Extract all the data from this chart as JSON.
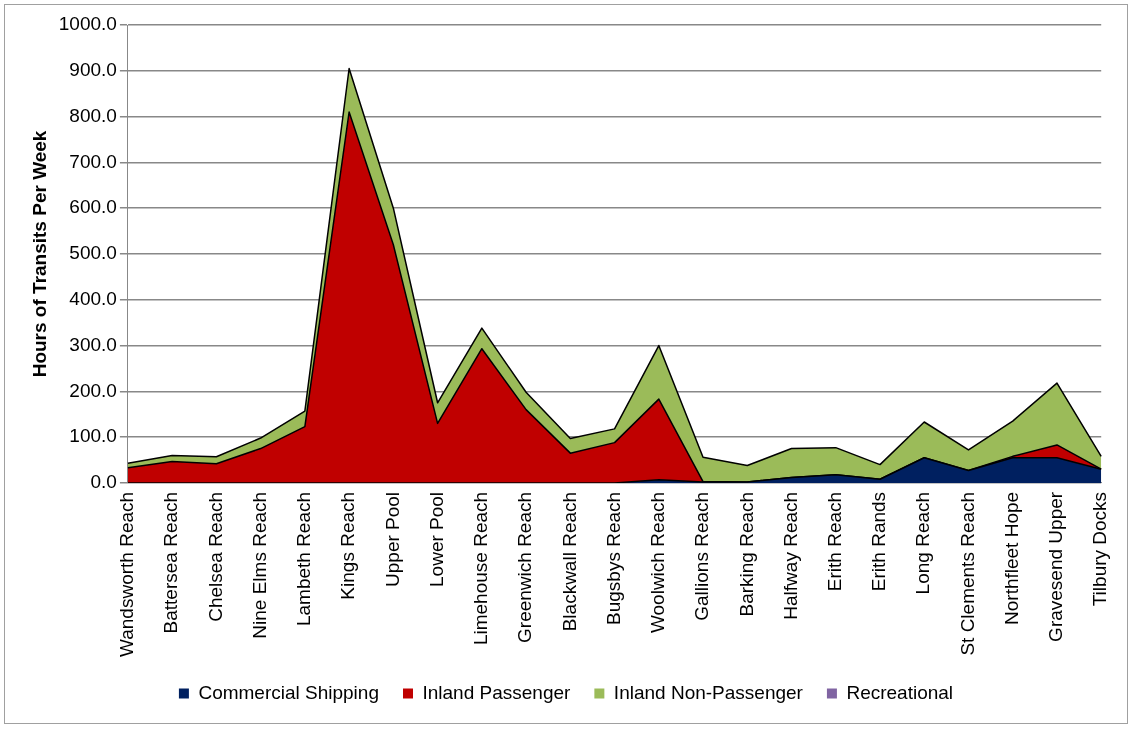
{
  "chart_data": {
    "type": "area",
    "stacked": true,
    "ylabel": "Hours of Transits Per Week",
    "categories": [
      "Wandsworth Reach",
      "Battersea Reach",
      "Chelsea Reach",
      "Nine Elms Reach",
      "Lambeth Reach",
      "Kings Reach",
      "Upper Pool",
      "Lower Pool",
      "Limehouse Reach",
      "Greenwich Reach",
      "Blackwall Reach",
      "Bugsbys Reach",
      "Woolwich Reach",
      "Gallions Reach",
      "Barking Reach",
      "Halfway Reach",
      "Erith Reach",
      "Erith Rands",
      "Long Reach",
      "St Clements Reach",
      "Northfleet Hope",
      "Gravesend Upper",
      "Tilbury Docks"
    ],
    "series": [
      {
        "name": "Commercial Shipping",
        "color": "#002060",
        "values": [
          0,
          0,
          0,
          0,
          0,
          0,
          0,
          0,
          0,
          0,
          0,
          0,
          7,
          2,
          2,
          12,
          18,
          8,
          55,
          27,
          55,
          55,
          30
        ]
      },
      {
        "name": "Inland Passenger",
        "color": "#c00000",
        "values": [
          33,
          47,
          42,
          75,
          123,
          810,
          520,
          130,
          293,
          160,
          65,
          88,
          176,
          1,
          0,
          0,
          0,
          0,
          0,
          0,
          3,
          28,
          0
        ]
      },
      {
        "name": "Inland Non-Passenger",
        "color": "#9bbb59",
        "values": [
          10,
          13,
          15,
          23,
          34,
          95,
          80,
          45,
          45,
          38,
          32,
          30,
          117,
          53,
          36,
          63,
          59,
          32,
          78,
          45,
          77,
          135,
          28
        ]
      },
      {
        "name": "Recreational",
        "color": "#8064a2",
        "values": [
          null,
          null,
          null,
          null,
          null,
          null,
          null,
          null,
          null,
          null,
          null,
          null,
          null,
          null,
          null,
          null,
          null,
          null,
          null,
          null,
          null,
          null,
          null
        ]
      }
    ],
    "ylim": [
      0,
      1000
    ],
    "yticks": [
      {
        "value": 0,
        "label": "0.0"
      },
      {
        "value": 100,
        "label": "100.0"
      },
      {
        "value": 200,
        "label": "200.0"
      },
      {
        "value": 300,
        "label": "300.0"
      },
      {
        "value": 400,
        "label": "400.0"
      },
      {
        "value": 500,
        "label": "500.0"
      },
      {
        "value": 600,
        "label": "600.0"
      },
      {
        "value": 700,
        "label": "700.0"
      },
      {
        "value": 800,
        "label": "800.0"
      },
      {
        "value": 900,
        "label": "900.0"
      },
      {
        "value": 1000,
        "label": "1000.0"
      }
    ],
    "grid": "y",
    "legend": "bottom"
  }
}
